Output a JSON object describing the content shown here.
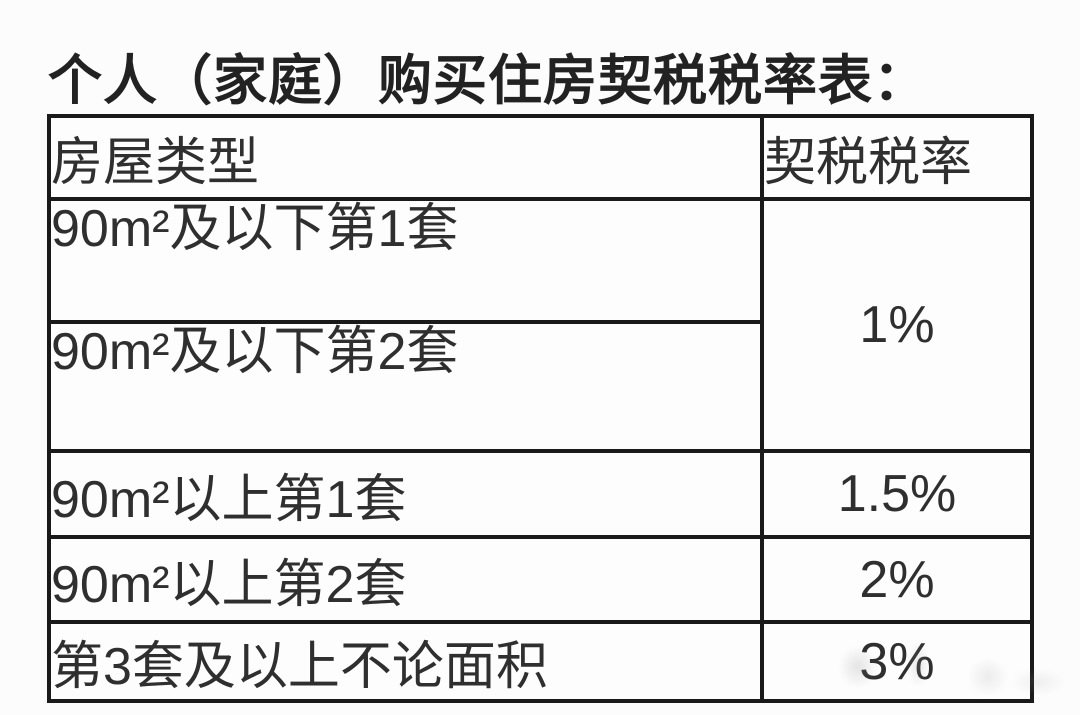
{
  "title": "个人（家庭）购买住房契税税率表：",
  "table": {
    "headers": {
      "housing_type": "房屋类型",
      "tax_rate": "契税税率"
    },
    "rows": [
      {
        "type": "90m²及以下第1套"
      },
      {
        "type": "90m²及以下第2套"
      },
      {
        "type": "90m²以上第1套",
        "rate": "1.5%"
      },
      {
        "type": "90m²以上第2套",
        "rate": "2%"
      },
      {
        "type": "第3套及以上不论面积",
        "rate": "3%"
      }
    ],
    "merged_rate_label": "1%",
    "merged_rate_applies_to": "90m²及以下第1套 / 90m²及以下第2套"
  },
  "colors": {
    "background": "#fcfcfc",
    "cell_background": "#fdfdfd",
    "border": "#1a1a1a",
    "text": "#2f2f2f",
    "title_text": "#222222"
  }
}
